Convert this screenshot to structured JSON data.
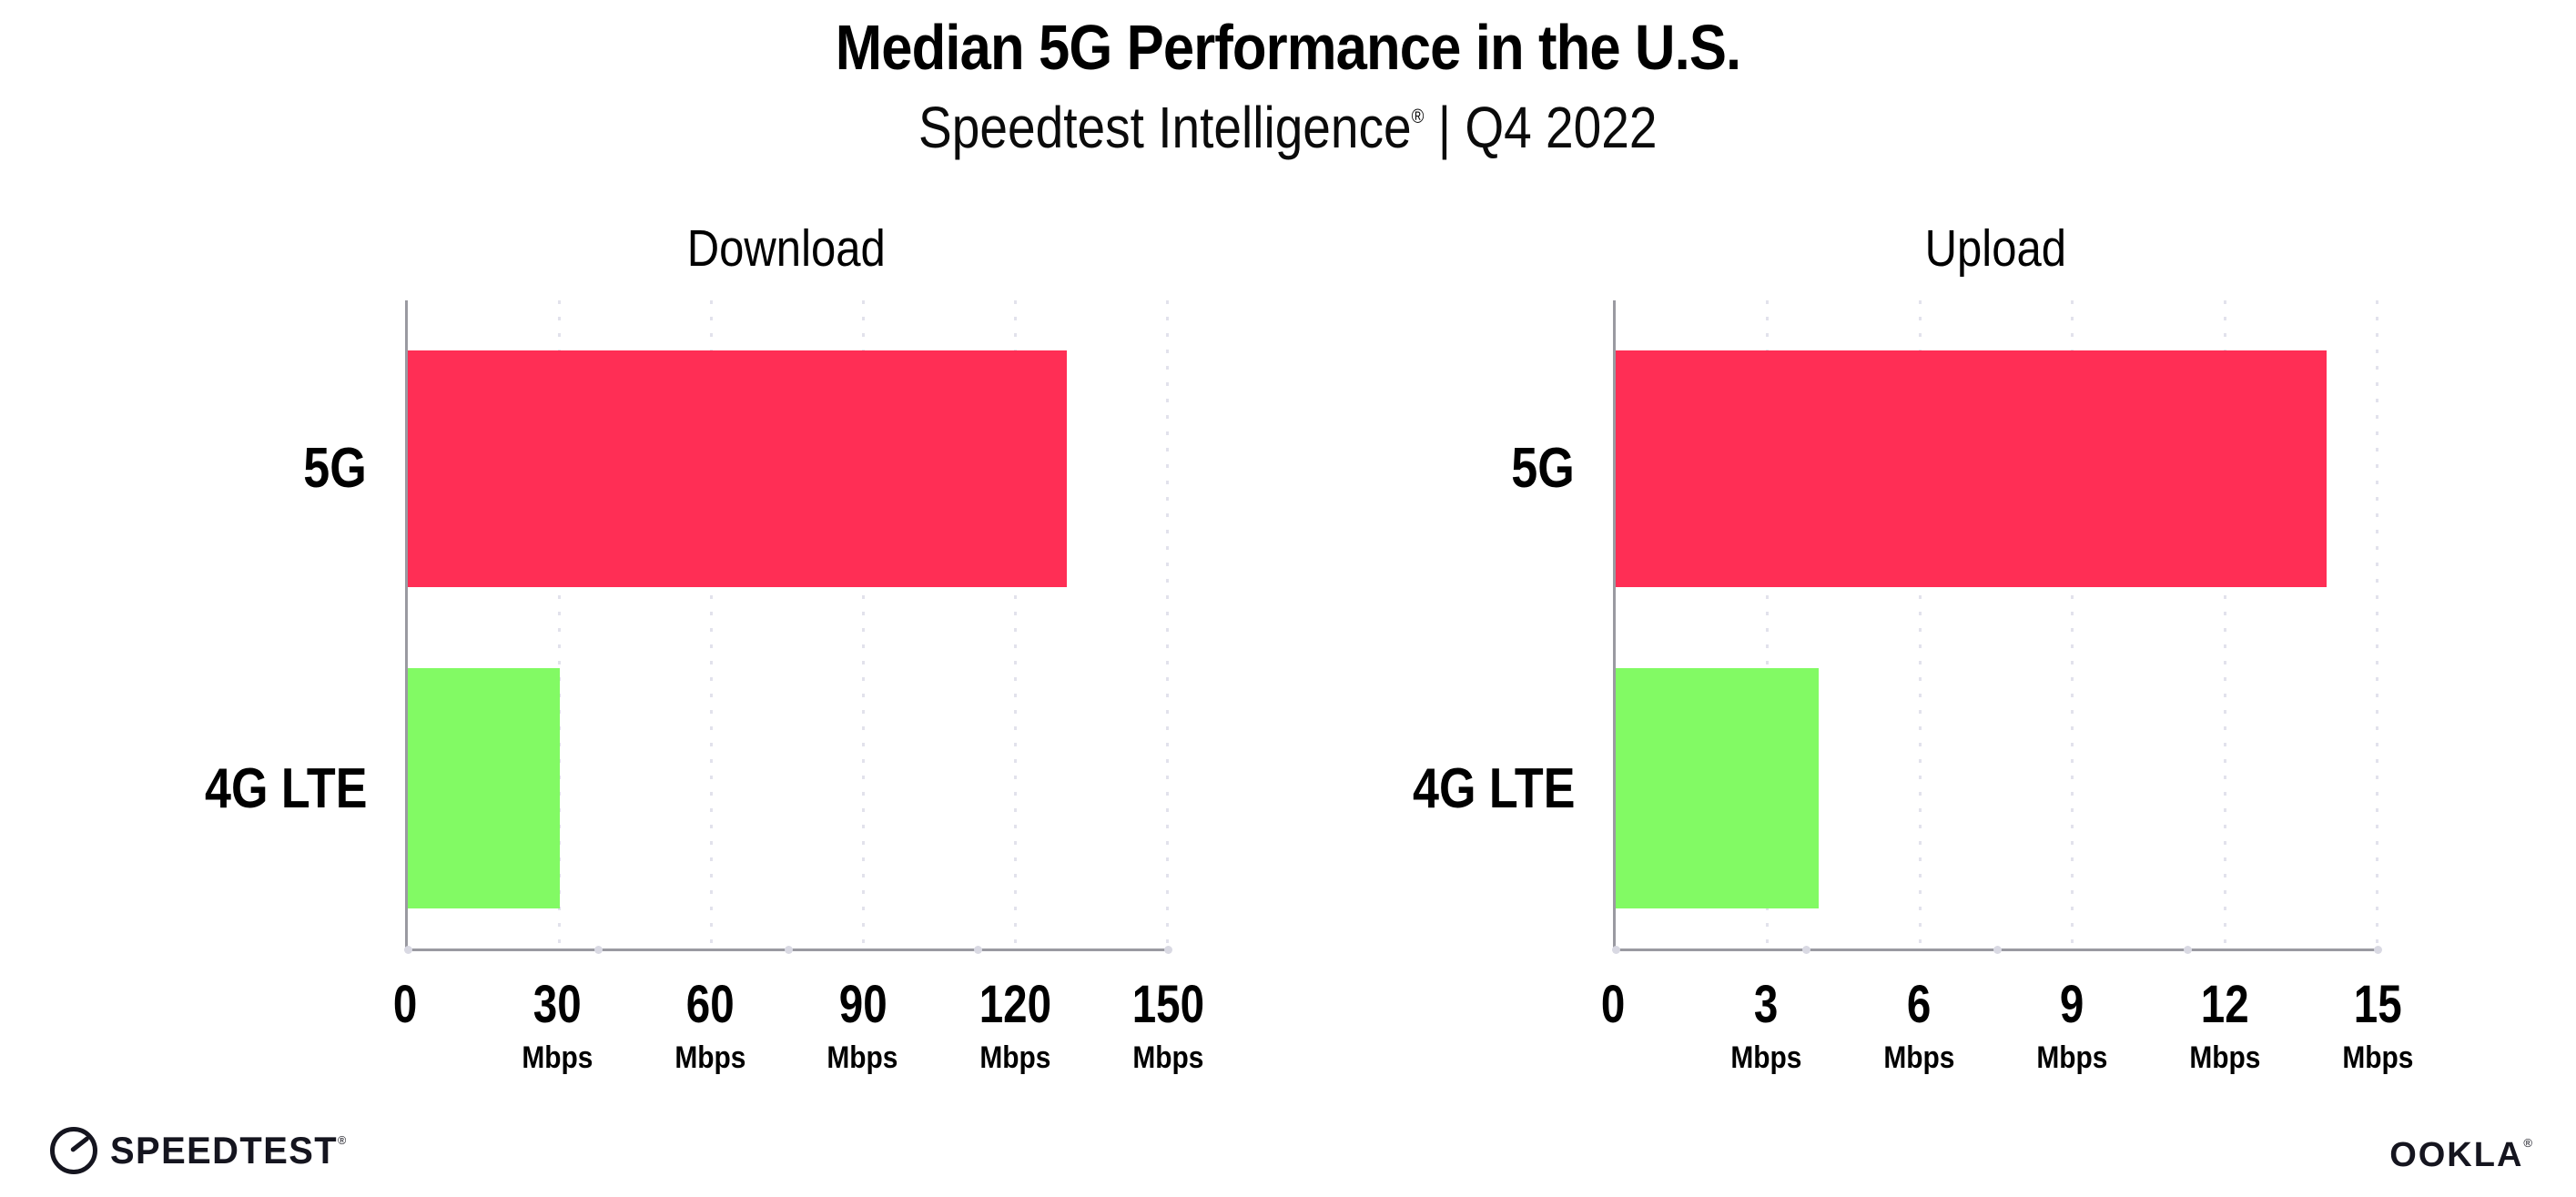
{
  "header": {
    "title": "Median 5G Performance in the U.S.",
    "subtitle_brand": "Speedtest Intelligence",
    "subtitle_reg": "®",
    "subtitle_rest": " | Q4 2022"
  },
  "chart_data": [
    {
      "type": "bar",
      "orientation": "horizontal",
      "title": "Download",
      "categories": [
        "5G",
        "4G LTE"
      ],
      "values": [
        130,
        30
      ],
      "unit": "Mbps",
      "xlim": [
        0,
        150
      ],
      "xticks": [
        0,
        30,
        60,
        90,
        120,
        150
      ],
      "grid": "vertical-dotted",
      "legend": "none"
    },
    {
      "type": "bar",
      "orientation": "horizontal",
      "title": "Upload",
      "categories": [
        "5G",
        "4G LTE"
      ],
      "values": [
        14,
        4
      ],
      "unit": "Mbps",
      "xlim": [
        0,
        15
      ],
      "xticks": [
        0,
        3,
        6,
        9,
        12,
        15
      ],
      "grid": "vertical-dotted",
      "legend": "none"
    }
  ],
  "colors": {
    "bar_5g": "#FF2E55",
    "bar_4g": "#82FA64",
    "axis": "#9a9aa1",
    "grid": "#e2e2ec",
    "tick_dot": "#d9d9e3",
    "text": "#000000"
  },
  "footer": {
    "speedtest_label": "SPEEDTEST",
    "speedtest_reg": "®",
    "speedtest_icon": "speedtest-gauge-icon",
    "ookla_label": "OOKLA",
    "ookla_reg": "®"
  }
}
